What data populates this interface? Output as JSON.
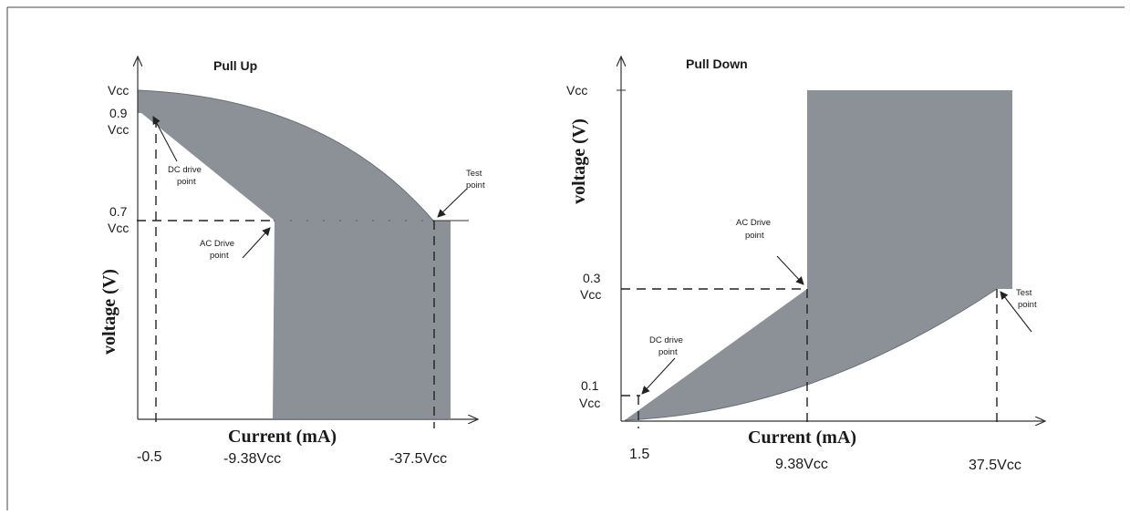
{
  "pull_up": {
    "title": "Pull Up",
    "y_axis_title": "voltage (V)",
    "x_axis_title": "Current (mA)",
    "y_ticks": {
      "vcc": "Vcc",
      "v09_line1": "0.9",
      "v09_line2": "Vcc",
      "v07_line1": "0.7",
      "v07_line2": "Vcc"
    },
    "x_labels": {
      "neg05": "-0.5",
      "neg938": "-9.38Vcc",
      "neg375": "-37.5Vcc"
    },
    "annotations": {
      "dc_drive_line1": "DC drive",
      "dc_drive_line2": "point",
      "ac_drive_line1": "AC Drive",
      "ac_drive_line2": "point",
      "test_line1": "Test",
      "test_line2": "point"
    }
  },
  "pull_down": {
    "title": "Pull Down",
    "y_axis_title": "voltage (V)",
    "x_axis_title": "Current (mA)",
    "y_ticks": {
      "vcc": "Vcc",
      "v03_line1": "0.3",
      "v03_line2": "Vcc",
      "v01_line1": "0.1",
      "v01_line2": "Vcc"
    },
    "x_labels": {
      "x15": "1.5",
      "x938": "9.38Vcc",
      "x375": "37.5Vcc"
    },
    "annotations": {
      "ac_drive_line1": "AC Drive",
      "ac_drive_line2": "point",
      "dc_drive_line1": "DC drive",
      "dc_drive_line2": "point",
      "test_line1": "Test",
      "test_line2": "point"
    }
  },
  "colors": {
    "region_fill": "#8c9198",
    "line": "#222222"
  }
}
